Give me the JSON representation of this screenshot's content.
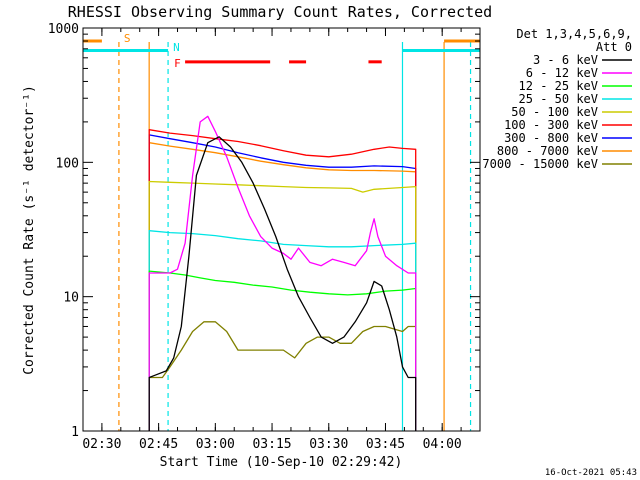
{
  "chart_data": {
    "type": "line",
    "title": "RHESSI Observing Summary Count Rates, Corrected",
    "xlabel": "Start Time (10-Sep-10 02:29:42)",
    "ylabel": "Corrected Count Rate (s⁻¹ detector⁻¹)",
    "x_ticks": [
      "02:30",
      "02:45",
      "03:00",
      "03:15",
      "03:30",
      "03:45",
      "04:00"
    ],
    "x_tick_minutes": [
      0,
      15,
      30,
      45,
      60,
      75,
      90
    ],
    "xlim_minutes": [
      -5,
      100
    ],
    "y_scale": "log",
    "ylim": [
      1,
      1000
    ],
    "y_ticks": [
      "1",
      "10",
      "100",
      "1000"
    ],
    "y_tick_values": [
      1,
      10,
      100,
      1000
    ],
    "legend_header": [
      "Det 1,3,4,5,6,9,",
      "Att 0"
    ],
    "legend_position": "right",
    "timestamp": "16-Oct-2021 05:43",
    "markers": [
      {
        "label": "S",
        "color": "#ff8c00",
        "line_minute": 4.5,
        "style": "dashed"
      },
      {
        "label": "N",
        "color": "#00e5e5",
        "line_minute": 17.5,
        "style": "dashed"
      },
      {
        "label": "F",
        "color": "#ff0000"
      }
    ],
    "vertical_lines": [
      {
        "minute": 12.5,
        "color": "#ff8c00"
      },
      {
        "minute": 79.5,
        "color": "#00e5e5"
      },
      {
        "minute": 90.5,
        "color": "#ff8c00"
      },
      {
        "minute": 97.5,
        "color": "#00e5e5",
        "style": "dashed"
      }
    ],
    "night_bars": [
      {
        "color": "#00e5e5",
        "x0": -5,
        "x1": 17.5,
        "y": 680
      },
      {
        "color": "#00e5e5",
        "x0": 79.5,
        "x1": 100,
        "y": 680
      },
      {
        "color": "#ff8c00",
        "x0": -5,
        "x1": 0,
        "y": 800
      },
      {
        "color": "#ff8c00",
        "x0": 90.5,
        "x1": 100,
        "y": 800
      }
    ],
    "flare_bars": {
      "color": "#ff0000",
      "y": 560,
      "segments": [
        [
          22,
          44.5
        ],
        [
          49.5,
          54
        ],
        [
          70.5,
          74
        ]
      ]
    },
    "series": [
      {
        "name": "3 - 6 keV",
        "color": "#000000",
        "x": [
          12.5,
          14,
          17,
          19,
          21,
          23,
          25,
          28,
          31,
          34,
          37,
          40,
          43,
          46,
          49,
          52,
          55,
          58,
          61,
          64,
          67,
          70,
          72,
          74,
          76,
          78,
          79.5,
          81,
          83
        ],
        "values": [
          2.5,
          2.6,
          2.8,
          3.5,
          6,
          20,
          80,
          140,
          155,
          130,
          100,
          70,
          45,
          28,
          16,
          10,
          7,
          5,
          4.5,
          5,
          6.5,
          9,
          13,
          12,
          8,
          5,
          3,
          2.5,
          2.5
        ]
      },
      {
        "name": "6 - 12 keV",
        "color": "#ff00ff",
        "x": [
          12.5,
          15,
          18,
          20,
          22,
          24,
          26,
          28,
          30,
          33,
          36,
          39,
          42,
          45,
          48,
          50,
          52,
          55,
          58,
          61,
          64,
          67,
          70,
          71,
          72,
          73,
          75,
          78,
          81,
          83
        ],
        "values": [
          15,
          15,
          15,
          16,
          25,
          80,
          200,
          220,
          170,
          110,
          65,
          40,
          28,
          23,
          21,
          19,
          23,
          18,
          17,
          19,
          18,
          17,
          22,
          30,
          38,
          28,
          20,
          17,
          15,
          15
        ]
      },
      {
        "name": "12 - 25 keV",
        "color": "#00ff00",
        "x": [
          12.5,
          18,
          22,
          26,
          30,
          35,
          40,
          45,
          50,
          55,
          60,
          65,
          70,
          75,
          79.5,
          83
        ],
        "values": [
          15.5,
          15,
          14.5,
          13.8,
          13.2,
          12.8,
          12.2,
          11.8,
          11.2,
          10.8,
          10.5,
          10.3,
          10.5,
          11,
          11.2,
          11.5
        ]
      },
      {
        "name": "25 - 50 keV",
        "color": "#00e5e5",
        "x": [
          12.5,
          18,
          24,
          30,
          36,
          42,
          48,
          54,
          60,
          66,
          72,
          79.5,
          83
        ],
        "values": [
          31,
          30,
          29.5,
          28.5,
          27,
          26,
          24.5,
          24,
          23.5,
          23.5,
          24,
          24.5,
          25
        ]
      },
      {
        "name": "50 - 100 keV",
        "color": "#cccc00",
        "x": [
          12.5,
          18,
          24,
          30,
          36,
          42,
          48,
          54,
          60,
          66,
          69,
          72,
          79.5,
          83
        ],
        "values": [
          72,
          71,
          70,
          69,
          68,
          67,
          66,
          65,
          64.5,
          64,
          60,
          63,
          65,
          66
        ]
      },
      {
        "name": "100 - 300 keV",
        "color": "#ff0000",
        "x": [
          12.5,
          18,
          24,
          30,
          36,
          42,
          48,
          54,
          60,
          66,
          72,
          76,
          79.5,
          83
        ],
        "values": [
          175,
          165,
          158,
          150,
          143,
          133,
          122,
          113,
          110,
          115,
          125,
          130,
          127,
          125
        ]
      },
      {
        "name": "300 - 800 keV",
        "color": "#0000ff",
        "x": [
          12.5,
          18,
          24,
          30,
          36,
          42,
          48,
          54,
          60,
          66,
          72,
          79.5,
          83
        ],
        "values": [
          160,
          150,
          140,
          130,
          118,
          108,
          100,
          95,
          92,
          92,
          94,
          93,
          90
        ]
      },
      {
        "name": "800 - 7000 keV",
        "color": "#ff8c00",
        "x": [
          12.5,
          18,
          24,
          30,
          36,
          42,
          48,
          54,
          60,
          66,
          72,
          79.5,
          83
        ],
        "values": [
          140,
          132,
          125,
          118,
          110,
          102,
          96,
          91,
          88,
          87,
          87,
          86,
          85
        ]
      },
      {
        "name": "7000 - 15000 keV",
        "color": "#808000",
        "x": [
          12.5,
          16,
          18,
          21,
          24,
          27,
          30,
          33,
          36,
          39,
          42,
          45,
          48,
          51,
          54,
          57,
          60,
          63,
          66,
          69,
          72,
          75,
          79.5,
          81,
          83
        ],
        "values": [
          2.5,
          2.5,
          3,
          4,
          5.5,
          6.5,
          6.5,
          5.5,
          4,
          4,
          4,
          4,
          4,
          3.5,
          4.5,
          5,
          5,
          4.5,
          4.5,
          5.5,
          6,
          6,
          5.5,
          6,
          6
        ]
      }
    ]
  }
}
